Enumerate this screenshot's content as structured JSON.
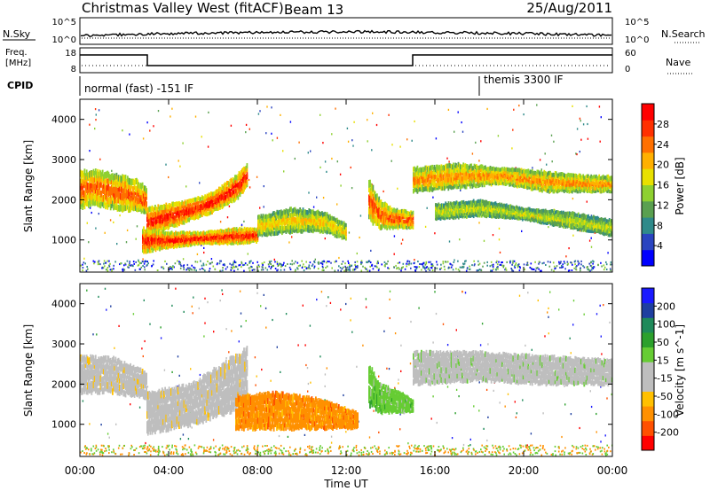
{
  "header": {
    "title": "Christmas Valley West (fitACF)",
    "beam": "Beam 13",
    "date": "25/Aug/2011"
  },
  "side_labels": {
    "nsky": "N.Sky",
    "nsearch": "N.Search",
    "freq": "Freq.",
    "freq_unit": "[MHz]",
    "nave": "Nave",
    "cpid": "CPID",
    "nsky_ticks": [
      "10^5",
      "10^0"
    ],
    "nsearch_ticks": [
      "10^5",
      "10^0"
    ],
    "freq_ticks": [
      "18",
      "8"
    ],
    "nave_ticks": [
      "60",
      "0"
    ]
  },
  "cpid_segments": [
    {
      "label": "normal (fast) -151 IF",
      "start_hour": 0
    },
    {
      "label": "themis 3300 IF",
      "start_hour": 18
    }
  ],
  "colors": {
    "power": [
      "#0000ff",
      "#2a44c0",
      "#2f8a8a",
      "#5aa050",
      "#8ed030",
      "#e8e000",
      "#ffb000",
      "#ff7000",
      "#ff3000",
      "#ff0000"
    ],
    "velocity": [
      "#ff0000",
      "#ff5000",
      "#ff9000",
      "#ffc000",
      "#bebebe",
      "#bebebe",
      "#66cc33",
      "#2ca02c",
      "#1f8a5a",
      "#1f3fa0",
      "#1a1aff"
    ]
  },
  "chart_data": [
    {
      "type": "heatmap",
      "name": "power",
      "xlabel": "",
      "ylabel": "Slant Range [km]",
      "xlim": [
        0,
        24
      ],
      "ylim": [
        200,
        4500
      ],
      "yticks": [
        "1000",
        "2000",
        "3000",
        "4000"
      ],
      "colorbar_label": "Power [dB]",
      "colorbar_ticks": [
        "4",
        "8",
        "12",
        "16",
        "20",
        "24",
        "28"
      ],
      "bands": [
        {
          "x": [
            0,
            0.5,
            1.5,
            2.5,
            3.0
          ],
          "range_lo": [
            1800,
            1900,
            1800,
            1700,
            1650
          ],
          "range_hi": [
            2700,
            2750,
            2650,
            2500,
            2300
          ],
          "level": 8
        },
        {
          "x": [
            3.0,
            4.0,
            5.0,
            6.0,
            7.0,
            7.5
          ],
          "range_lo": [
            1100,
            1300,
            1500,
            1700,
            2000,
            2300
          ],
          "range_hi": [
            1800,
            1900,
            2000,
            2200,
            2600,
            2900
          ],
          "level": 9
        },
        {
          "x": [
            2.8,
            4.0,
            5.5,
            7.0,
            8.0
          ],
          "range_lo": [
            700,
            800,
            900,
            900,
            950
          ],
          "range_hi": [
            1300,
            1200,
            1200,
            1300,
            1300
          ],
          "level": 9
        },
        {
          "x": [
            8.0,
            9.5,
            11.0,
            12.0
          ],
          "range_lo": [
            1100,
            1200,
            1200,
            1000
          ],
          "range_hi": [
            1600,
            1800,
            1700,
            1400
          ],
          "level": 6
        },
        {
          "x": [
            13.0,
            13.5,
            14.0,
            15.0
          ],
          "range_lo": [
            1500,
            1300,
            1300,
            1300
          ],
          "range_hi": [
            2500,
            2000,
            1800,
            1700
          ],
          "level": 8
        },
        {
          "x": [
            15.0,
            17.0,
            19.0,
            21.0,
            23.0,
            24.0
          ],
          "range_lo": [
            2200,
            2300,
            2400,
            2200,
            2200,
            2200
          ],
          "range_hi": [
            2800,
            2900,
            2800,
            2700,
            2600,
            2600
          ],
          "level": 7
        },
        {
          "x": [
            16.0,
            18.0,
            20.0,
            22.0,
            24.0
          ],
          "range_lo": [
            1500,
            1600,
            1500,
            1300,
            1100
          ],
          "range_hi": [
            1900,
            2000,
            1800,
            1700,
            1500
          ],
          "level": 5
        }
      ]
    },
    {
      "type": "heatmap",
      "name": "velocity",
      "xlabel": "Time UT",
      "ylabel": "Slant Range [km]",
      "xlim": [
        0,
        24
      ],
      "ylim": [
        200,
        4500
      ],
      "xticks": [
        "00:00",
        "04:00",
        "08:00",
        "12:00",
        "16:00",
        "20:00",
        "00:00"
      ],
      "yticks": [
        "1000",
        "2000",
        "3000",
        "4000"
      ],
      "colorbar_label": "Velocity [m s^-1]",
      "colorbar_ticks": [
        "-200",
        "-100",
        "-50",
        "-15",
        "15",
        "50",
        "100",
        "200"
      ],
      "bands": [
        {
          "x": [
            0,
            1.5,
            3.0
          ],
          "range_lo": [
            1800,
            1800,
            1650
          ],
          "range_hi": [
            2700,
            2650,
            2300
          ],
          "level": 4
        },
        {
          "x": [
            3.0,
            5.0,
            7.5
          ],
          "range_lo": [
            800,
            1000,
            1500
          ],
          "range_hi": [
            1800,
            2000,
            2900
          ],
          "level": 4
        },
        {
          "x": [
            7.0,
            9.0,
            11.0,
            12.5
          ],
          "range_lo": [
            900,
            900,
            900,
            900
          ],
          "range_hi": [
            1700,
            1800,
            1600,
            1300
          ],
          "level": 2
        },
        {
          "x": [
            13.0,
            13.5,
            14.5,
            15.0
          ],
          "range_lo": [
            1500,
            1300,
            1300,
            1300
          ],
          "range_hi": [
            2500,
            2000,
            1800,
            1600
          ],
          "level": 6
        },
        {
          "x": [
            15.0,
            18.0,
            21.0,
            24.0
          ],
          "range_lo": [
            2000,
            2100,
            2000,
            2000
          ],
          "range_hi": [
            2800,
            2800,
            2700,
            2600
          ],
          "level": 5
        }
      ]
    }
  ]
}
